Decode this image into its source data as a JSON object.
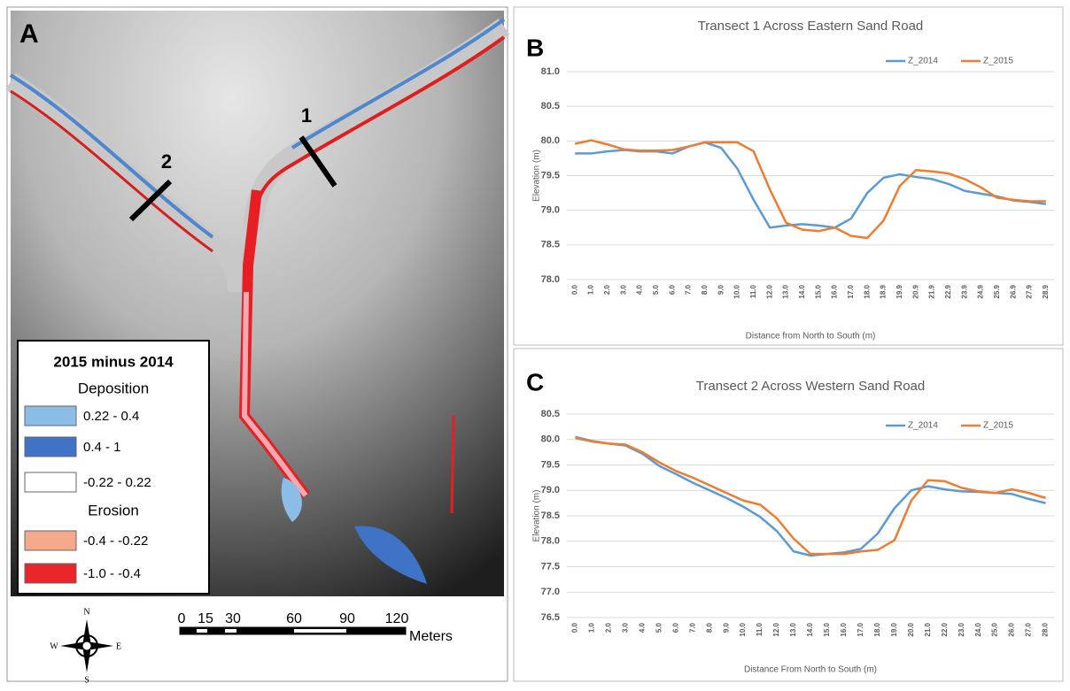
{
  "panels": {
    "A": {
      "label": "A",
      "legend": {
        "title": "2015 minus 2014",
        "groups": [
          {
            "name": "Deposition",
            "items": [
              {
                "label": "0.22 - 0.4",
                "color": "#8bbde6"
              },
              {
                "label": "0.4 - 1",
                "color": "#3f73c6"
              },
              {
                "label": "-0.22 - 0.22",
                "color": "#ffffff"
              }
            ]
          },
          {
            "name": "Erosion",
            "items": [
              {
                "label": "-0.4 - -0.22",
                "color": "#f6a98a"
              },
              {
                "label": "-1.0 - -0.4",
                "color": "#e8262a"
              }
            ]
          }
        ]
      },
      "transects": [
        "1",
        "2"
      ],
      "compass": [
        "N",
        "E",
        "S",
        "W"
      ],
      "scale_bar": {
        "labels": [
          "0",
          "15",
          "30",
          "60",
          "90",
          "120"
        ],
        "unit": "Meters"
      }
    },
    "B": "B",
    "C": "C"
  },
  "chart_data": [
    {
      "type": "line",
      "title": "Transect 1 Across Eastern Sand Road",
      "x_label": "Distance from North to South (m)",
      "y_label": "Elevation (m)",
      "categories": [
        "0.0",
        "1.0",
        "2.0",
        "3.0",
        "4.0",
        "5.0",
        "6.0",
        "7.0",
        "8.0",
        "9.0",
        "10.0",
        "11.0",
        "12.0",
        "13.0",
        "14.0",
        "15.0",
        "16.0",
        "17.0",
        "18.0",
        "18.9",
        "19.9",
        "20.9",
        "21.9",
        "22.9",
        "23.9",
        "24.9",
        "25.9",
        "26.9",
        "27.9",
        "28.9"
      ],
      "series": [
        {
          "name": "Z_2014",
          "color": "#5b9bd5",
          "values": [
            79.82,
            79.82,
            79.85,
            79.87,
            79.85,
            79.85,
            79.82,
            79.92,
            79.98,
            79.9,
            79.6,
            79.15,
            78.75,
            78.78,
            78.8,
            78.78,
            78.75,
            78.88,
            79.25,
            79.47,
            79.52,
            79.48,
            79.45,
            79.38,
            79.28,
            79.24,
            79.2,
            79.14,
            79.12,
            79.09
          ]
        },
        {
          "name": "Z_2015",
          "color": "#ed7d31",
          "values": [
            79.96,
            80.01,
            79.95,
            79.88,
            79.86,
            79.86,
            79.87,
            79.92,
            79.98,
            79.98,
            79.98,
            79.85,
            79.3,
            78.82,
            78.72,
            78.7,
            78.75,
            78.63,
            78.6,
            78.85,
            79.35,
            79.58,
            79.56,
            79.53,
            79.45,
            79.33,
            79.18,
            79.15,
            79.13,
            79.13
          ]
        }
      ],
      "ylim": [
        78,
        81
      ],
      "yticks": [
        {
          "value": 78,
          "label": "78.0"
        },
        78.5,
        {
          "value": 79,
          "label": "79.0"
        },
        79.5,
        {
          "value": 80,
          "label": "80.0"
        },
        80.5,
        {
          "value": 81,
          "label": "81.0"
        }
      ],
      "grid": true,
      "legend": "top-right"
    },
    {
      "type": "line",
      "title": "Transect 2 Across Western Sand Road",
      "x_label": "Distance From North to South (m)",
      "y_label": "Elevation (m)",
      "categories": [
        "0.0",
        "1.0",
        "2.0",
        "3.0",
        "4.0",
        "5.0",
        "6.0",
        "7.0",
        "8.0",
        "9.0",
        "10.0",
        "11.0",
        "12.0",
        "13.0",
        "14.0",
        "15.0",
        "16.0",
        "17.0",
        "18.0",
        "19.0",
        "20.0",
        "21.0",
        "22.0",
        "23.0",
        "24.0",
        "25.0",
        "26.0",
        "27.0",
        "28.0"
      ],
      "series": [
        {
          "name": "Z_2014",
          "color": "#5b9bd5",
          "values": [
            80.05,
            79.97,
            79.92,
            79.88,
            79.72,
            79.48,
            79.32,
            79.15,
            79.0,
            78.85,
            78.68,
            78.48,
            78.2,
            77.8,
            77.72,
            77.75,
            77.78,
            77.85,
            78.15,
            78.65,
            79.0,
            79.08,
            79.02,
            78.98,
            78.97,
            78.95,
            78.93,
            78.83,
            78.75
          ]
        },
        {
          "name": "Z_2015",
          "color": "#ed7d31",
          "values": [
            80.03,
            79.96,
            79.92,
            79.9,
            79.75,
            79.55,
            79.38,
            79.25,
            79.1,
            78.95,
            78.8,
            78.72,
            78.45,
            78.05,
            77.75,
            77.75,
            77.75,
            77.8,
            77.83,
            78.02,
            78.8,
            79.2,
            79.18,
            79.05,
            78.98,
            78.95,
            79.02,
            78.95,
            78.85
          ]
        }
      ],
      "ylim": [
        76.5,
        80.5
      ],
      "yticks": [
        76.5,
        {
          "value": 77,
          "label": "77.0"
        },
        77.5,
        {
          "value": 78,
          "label": "78.0"
        },
        78.5,
        {
          "value": 79,
          "label": "79.0"
        },
        79.5,
        {
          "value": 80,
          "label": "80.0"
        },
        80.5
      ],
      "grid": true,
      "legend": "top-right"
    }
  ]
}
